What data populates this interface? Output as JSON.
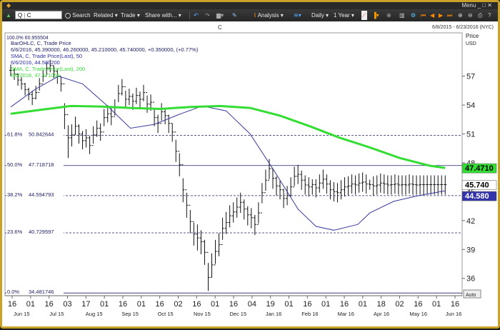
{
  "titlebar": {
    "title": "C",
    "menu": "Menu"
  },
  "toolbar": {
    "symbol_prefix": "Q",
    "symbol": "C",
    "search": "Search",
    "related": "Related",
    "trade": "Trade",
    "share": "Share with...",
    "analysis": "Analysis",
    "interval": "Daily",
    "span": "1 Year"
  },
  "chart": {
    "title": "C",
    "date_range": "6/8/2015 - 6/23/2016 (NYC)",
    "price_label": "Price",
    "currency_label": "USD",
    "auto_label": "Auto",
    "legend": [
      {
        "text": "BarOHLC, C, Trade Price",
        "color": "#1a1a66"
      },
      {
        "text": "6/6/2016, 45.390000, 46.260000, 45.210000, 45.740000, +0.350000, (+0.77%)",
        "color": "#1a1a66"
      },
      {
        "text": "SMA, C, Trade Price(Last), 50",
        "color": "#2b2ba6"
      },
      {
        "text": "6/6/2016, 44.580200",
        "color": "#2b2ba6"
      },
      {
        "text": "SMA, C, Trade Price(Last), 200",
        "color": "#33dd33"
      },
      {
        "text": "6/6/2016, 47.471050",
        "color": "#33dd33"
      }
    ],
    "top_fib_label": "100.0%  60.955504"
  },
  "chart_data": {
    "type": "line",
    "title": "C",
    "ylim": [
      34.2,
      61.5
    ],
    "y_ticks": [
      "57",
      "54",
      "51",
      "48",
      "45",
      "42",
      "39",
      "36"
    ],
    "y_tick_values": [
      57,
      54,
      51,
      48,
      45,
      42,
      39,
      36
    ],
    "x_day_labels": [
      "16",
      "01",
      "16",
      "03",
      "17",
      "01",
      "16",
      "01",
      "16",
      "02",
      "16",
      "01",
      "16",
      "04",
      "19",
      "01",
      "16",
      "01",
      "16",
      "01",
      "18",
      "02",
      "16",
      "01",
      "16"
    ],
    "x_month_labels": [
      "Jun 15",
      "Jul 15",
      "Aug 15",
      "Sep 15",
      "Oct 15",
      "Nov 15",
      "Dec 15",
      "Jan 16",
      "Feb 16",
      "Mar 16",
      "Apr 16",
      "May 16",
      "Jun 16"
    ],
    "fib_levels": [
      {
        "pct": "61.8%",
        "value": "50.842644",
        "y": 50.842644,
        "dashed": true
      },
      {
        "pct": "50.0%",
        "value": "47.718718",
        "y": 47.718718,
        "dashed": false
      },
      {
        "pct": "38.2%",
        "value": "44.594793",
        "y": 44.594793,
        "dashed": true
      },
      {
        "pct": "23.6%",
        "value": "40.729597",
        "y": 40.729597,
        "dashed": true
      },
      {
        "pct": "0.0%",
        "value": "34.481746",
        "y": 34.481746,
        "dashed": false
      }
    ],
    "badges": [
      {
        "label": "47.4710",
        "y": 47.471,
        "bg": "#33dd33",
        "fg": "#000000"
      },
      {
        "label": "45.740",
        "y": 45.74,
        "bg": "#ffffff",
        "fg": "#000000"
      },
      {
        "label": "44.580",
        "y": 44.58,
        "bg": "#3333aa",
        "fg": "#ffffff"
      }
    ],
    "price_series": {
      "name": "BarOHLC, C, Trade Price",
      "days": [
        0,
        3,
        6,
        9,
        12,
        15,
        18,
        21,
        24,
        27,
        30,
        33,
        36,
        39,
        42,
        45,
        48,
        51,
        54,
        57,
        60,
        63,
        66,
        69,
        72,
        75,
        78,
        81,
        84,
        87,
        90,
        93,
        96,
        99,
        102,
        105,
        108,
        111,
        114,
        117,
        120,
        123,
        126,
        129,
        132,
        135,
        138,
        141,
        144,
        147,
        150,
        153,
        156,
        159,
        162,
        165,
        168,
        171,
        174,
        177,
        180,
        183,
        186,
        189,
        192,
        195,
        198,
        201,
        204,
        207,
        210,
        213,
        216,
        219,
        222,
        225,
        228,
        231,
        234,
        237,
        240,
        243,
        246,
        249,
        252,
        255,
        258,
        261,
        264,
        267,
        270,
        273,
        276,
        279,
        282,
        285,
        288,
        291,
        294,
        297,
        300,
        303,
        306,
        309,
        312,
        315,
        318,
        321,
        324,
        327,
        330,
        333,
        336,
        339,
        342,
        345,
        348,
        351,
        354,
        357,
        360,
        363
      ],
      "close": [
        57.6,
        57.2,
        56.6,
        56.2,
        55.6,
        55.1,
        54.7,
        55.3,
        56.2,
        57.0,
        57.8,
        58.1,
        57.5,
        57.0,
        56.2,
        53.0,
        50.6,
        50.9,
        51.8,
        51.0,
        50.3,
        50.6,
        49.8,
        50.9,
        51.6,
        51.2,
        52.7,
        53.1,
        52.8,
        53.8,
        55.2,
        55.9,
        54.6,
        54.9,
        54.4,
        55.0,
        54.6,
        55.3,
        54.1,
        54.3,
        52.7,
        52.1,
        53.3,
        52.9,
        52.1,
        51.2,
        49.2,
        47.8,
        45.2,
        43.6,
        41.9,
        40.6,
        40.2,
        39.8,
        38.7,
        36.1,
        37.4,
        38.8,
        39.5,
        41.2,
        41.8,
        42.5,
        42.9,
        43.4,
        43.9,
        43.2,
        42.6,
        42.3,
        41.6,
        42.8,
        44.9,
        46.2,
        47.4,
        46.4,
        45.6,
        45.2,
        44.3,
        44.6,
        45.5,
        46.6,
        46.8,
        46.2,
        45.7,
        45.5,
        45.74,
        45.4,
        45.9,
        46.3,
        45.8,
        45.2,
        45.0,
        44.9,
        45.2,
        45.5,
        45.6,
        45.8,
        45.7,
        45.9,
        46.0,
        45.8,
        45.74,
        45.6,
        45.7,
        45.9,
        45.8,
        45.7,
        45.74,
        45.8,
        45.7,
        45.74,
        45.7,
        45.8,
        45.74,
        45.7,
        45.74,
        45.74,
        45.74,
        45.74,
        45.74,
        45.74,
        45.74,
        45.74
      ],
      "high": [
        58.2,
        57.8,
        57.3,
        56.9,
        56.3,
        55.8,
        55.5,
        56.0,
        56.8,
        57.6,
        58.4,
        58.7,
        58.1,
        57.7,
        56.9,
        54.2,
        51.9,
        52.0,
        52.8,
        52.0,
        51.3,
        51.5,
        50.8,
        51.8,
        52.4,
        52.1,
        53.6,
        54.0,
        53.7,
        54.6,
        56.1,
        56.7,
        55.5,
        55.7,
        55.2,
        55.8,
        55.4,
        56.1,
        55.0,
        55.1,
        53.6,
        53.0,
        54.2,
        53.7,
        53.0,
        52.1,
        50.4,
        49.0,
        46.4,
        44.9,
        43.1,
        41.8,
        41.6,
        41.0,
        40.0,
        37.6,
        38.6,
        40.0,
        40.7,
        42.3,
        42.9,
        43.6,
        43.9,
        44.4,
        44.9,
        44.2,
        43.5,
        43.3,
        42.6,
        43.9,
        45.9,
        47.3,
        48.4,
        47.4,
        46.6,
        46.2,
        45.3,
        45.6,
        46.5,
        47.6,
        47.8,
        47.2,
        46.7,
        46.5,
        46.3,
        46.3,
        46.8,
        47.3,
        46.8,
        46.2,
        46.0,
        45.9,
        46.2,
        46.5,
        46.6,
        46.8,
        46.7,
        46.9,
        47.0,
        46.8,
        46.26,
        46.6,
        46.7,
        46.9,
        46.8,
        46.7,
        46.7,
        46.8,
        46.7,
        46.7,
        46.7,
        46.8,
        46.7,
        46.7,
        46.7,
        46.7,
        46.7,
        46.7,
        46.7,
        46.7,
        46.7,
        46.7
      ],
      "low": [
        57.0,
        56.6,
        56.0,
        55.6,
        55.0,
        54.5,
        54.0,
        54.6,
        55.5,
        56.4,
        57.1,
        57.4,
        56.8,
        56.2,
        55.4,
        51.5,
        48.5,
        49.7,
        50.9,
        50.0,
        49.4,
        49.6,
        48.9,
        50.0,
        50.7,
        50.3,
        51.8,
        52.2,
        51.9,
        52.9,
        54.3,
        55.0,
        53.7,
        54.0,
        53.5,
        54.1,
        53.7,
        54.4,
        53.2,
        53.4,
        51.8,
        51.1,
        52.4,
        52.0,
        51.1,
        50.2,
        48.1,
        46.6,
        43.9,
        42.3,
        40.7,
        39.4,
        38.9,
        38.5,
        37.4,
        34.7,
        36.1,
        37.5,
        38.3,
        40.0,
        40.6,
        41.3,
        41.8,
        42.3,
        42.8,
        42.1,
        41.5,
        41.2,
        40.5,
        41.7,
        43.8,
        45.1,
        46.3,
        45.3,
        44.6,
        44.2,
        43.3,
        43.6,
        44.5,
        45.6,
        45.8,
        45.2,
        44.7,
        44.5,
        44.7,
        44.4,
        44.9,
        45.3,
        44.8,
        44.2,
        44.0,
        43.9,
        44.2,
        44.5,
        44.6,
        44.8,
        44.7,
        44.9,
        45.0,
        44.8,
        45.21,
        44.6,
        44.7,
        44.9,
        44.8,
        44.7,
        44.7,
        44.8,
        44.7,
        44.7,
        44.7,
        44.8,
        44.7,
        44.7,
        44.7,
        44.7,
        44.7,
        44.7,
        44.7,
        44.7,
        44.7,
        44.7
      ]
    },
    "sma50": {
      "name": "SMA, C, Trade Price(Last), 50",
      "color": "#3a3aa0",
      "days": [
        0,
        20,
        40,
        60,
        80,
        100,
        120,
        140,
        160,
        180,
        200,
        220,
        240,
        255,
        270,
        290,
        300,
        320,
        340,
        363
      ],
      "values": [
        53.8,
        55.6,
        57.0,
        56.2,
        54.0,
        51.6,
        52.0,
        53.0,
        53.9,
        53.4,
        51.0,
        47.2,
        43.2,
        41.4,
        41.0,
        41.6,
        42.8,
        44.0,
        44.58,
        45.1
      ]
    },
    "sma200": {
      "name": "SMA, C, Trade Price(Last), 200",
      "color": "#33dd33",
      "days": [
        0,
        25,
        50,
        75,
        100,
        125,
        150,
        175,
        200,
        225,
        250,
        275,
        300,
        325,
        350,
        363
      ],
      "values": [
        53.1,
        53.5,
        53.9,
        53.85,
        53.7,
        53.6,
        53.8,
        53.9,
        53.7,
        52.9,
        51.8,
        50.6,
        49.6,
        48.5,
        47.7,
        47.47
      ]
    }
  }
}
